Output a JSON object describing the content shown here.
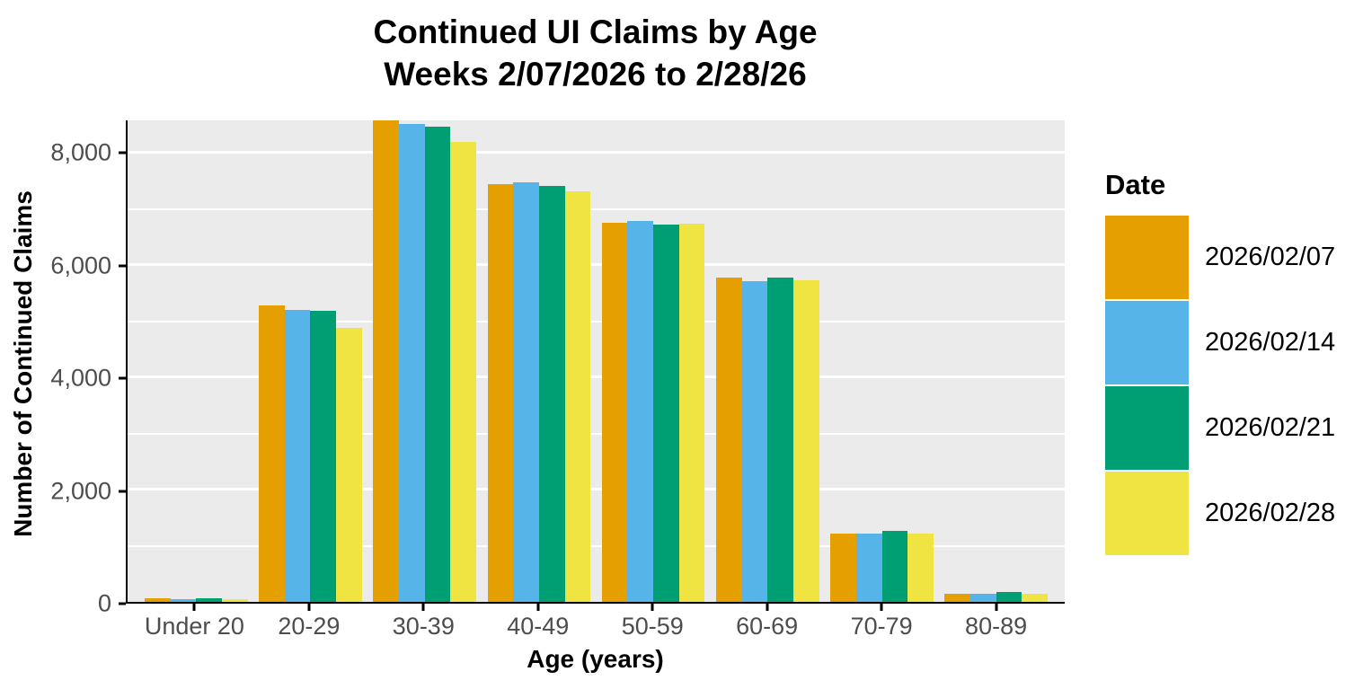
{
  "chart_data": {
    "type": "bar",
    "title_line1": "Continued UI Claims by Age",
    "title_line2": "Weeks 2/07/2026 to 2/28/26",
    "xlabel": "Age (years)",
    "ylabel": "Number of Continued Claims",
    "legend_title": "Date",
    "legend_position": "right",
    "grid": true,
    "panel_bg": "#EBEBEB",
    "grid_color": "#FFFFFF",
    "axis_text_color": "#4D4D4D",
    "categories": [
      "Under 20",
      "20-29",
      "30-39",
      "40-49",
      "50-59",
      "60-69",
      "70-79",
      "80-89"
    ],
    "series": [
      {
        "name": "2026/02/07",
        "color": "#E69F00",
        "values": [
          60,
          5280,
          8580,
          7450,
          6760,
          5780,
          1210,
          140
        ]
      },
      {
        "name": "2026/02/14",
        "color": "#56B4E9",
        "values": [
          55,
          5200,
          8520,
          7470,
          6790,
          5720,
          1215,
          140
        ]
      },
      {
        "name": "2026/02/21",
        "color": "#009E73",
        "values": [
          60,
          5185,
          8470,
          7415,
          6730,
          5780,
          1270,
          180
        ]
      },
      {
        "name": "2026/02/28",
        "color": "#F0E442",
        "values": [
          50,
          4880,
          8190,
          7315,
          6735,
          5730,
          1210,
          145
        ]
      }
    ],
    "ylim": [
      0,
      8580
    ],
    "y_ticks": [
      0,
      2000,
      4000,
      6000,
      8000
    ],
    "y_tick_labels": [
      "0",
      "2,000",
      "4,000",
      "6,000",
      "8,000"
    ],
    "y_minor_ticks": [
      1000,
      3000,
      5000,
      7000
    ]
  }
}
